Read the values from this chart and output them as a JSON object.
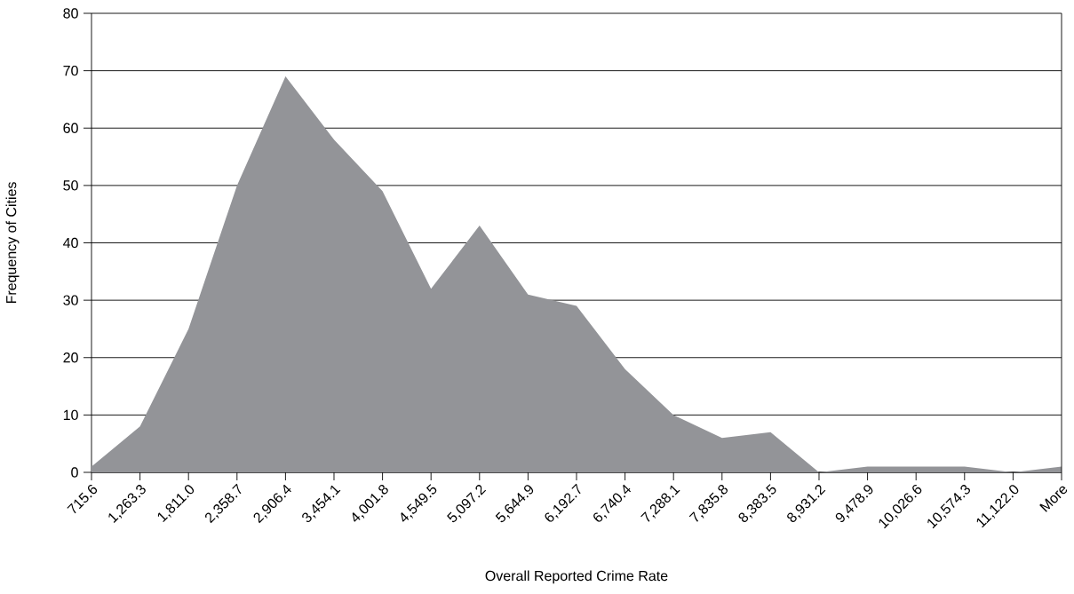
{
  "chart_data": {
    "type": "area",
    "xlabel": "Overall Reported Crime Rate",
    "ylabel": "Frequency of Cities",
    "categories": [
      "715.6",
      "1,263.3",
      "1,811.0",
      "2,358.7",
      "2,906.4",
      "3,454.1",
      "4,001.8",
      "4,549.5",
      "5,097.2",
      "5,644.9",
      "6,192.7",
      "6,740.4",
      "7,288.1",
      "7,835.8",
      "8,383.5",
      "8,931.2",
      "9,478.9",
      "10,026.6",
      "10,574.3",
      "11,122.0",
      "More"
    ],
    "values": [
      1,
      8,
      25,
      50,
      69,
      58,
      49,
      32,
      43,
      31,
      29,
      18,
      10,
      6,
      7,
      0,
      1,
      1,
      1,
      0,
      1
    ],
    "color": "#939498",
    "ylim": [
      0,
      80
    ],
    "yticks": [
      0,
      10,
      20,
      30,
      40,
      50,
      60,
      70,
      80
    ],
    "grid": "y"
  }
}
